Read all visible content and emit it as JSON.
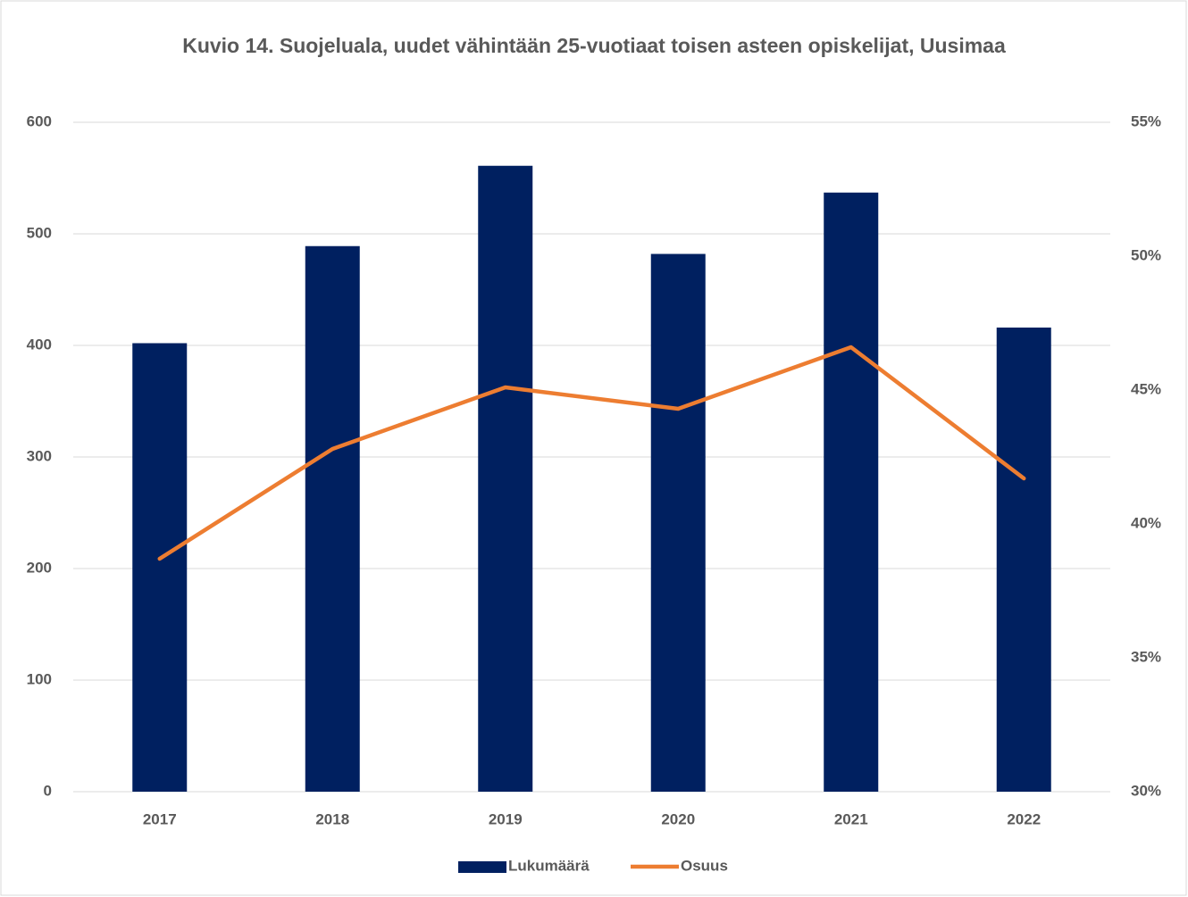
{
  "chart_data": {
    "type": "bar_line",
    "title": "Kuvio 14. Suojeluala, uudet vähintään 25-vuotiaat toisen asteen opiskelijat, Uusimaa",
    "categories": [
      "2017",
      "2018",
      "2019",
      "2020",
      "2021",
      "2022"
    ],
    "series": [
      {
        "name": "Lukumäärä",
        "type": "bar",
        "color": "#002060",
        "values": [
          402,
          489,
          561,
          482,
          537,
          416
        ]
      },
      {
        "name": "Osuus",
        "type": "line",
        "axis": "y2",
        "color": "#ed7d31",
        "values": [
          38.7,
          42.8,
          45.1,
          44.3,
          46.6,
          41.7
        ]
      }
    ],
    "ylim": [
      0,
      600
    ],
    "yticks": [
      0,
      100,
      200,
      300,
      400,
      500,
      600
    ],
    "y2lim": [
      30,
      55
    ],
    "y2ticks": [
      {
        "value": 30,
        "label": "30%"
      },
      {
        "value": 35,
        "label": "35%"
      },
      {
        "value": 40,
        "label": "40%"
      },
      {
        "value": 45,
        "label": "45%"
      },
      {
        "value": 50,
        "label": "50%"
      },
      {
        "value": 55,
        "label": "55%"
      }
    ],
    "grid": true,
    "legend": "bottom"
  }
}
